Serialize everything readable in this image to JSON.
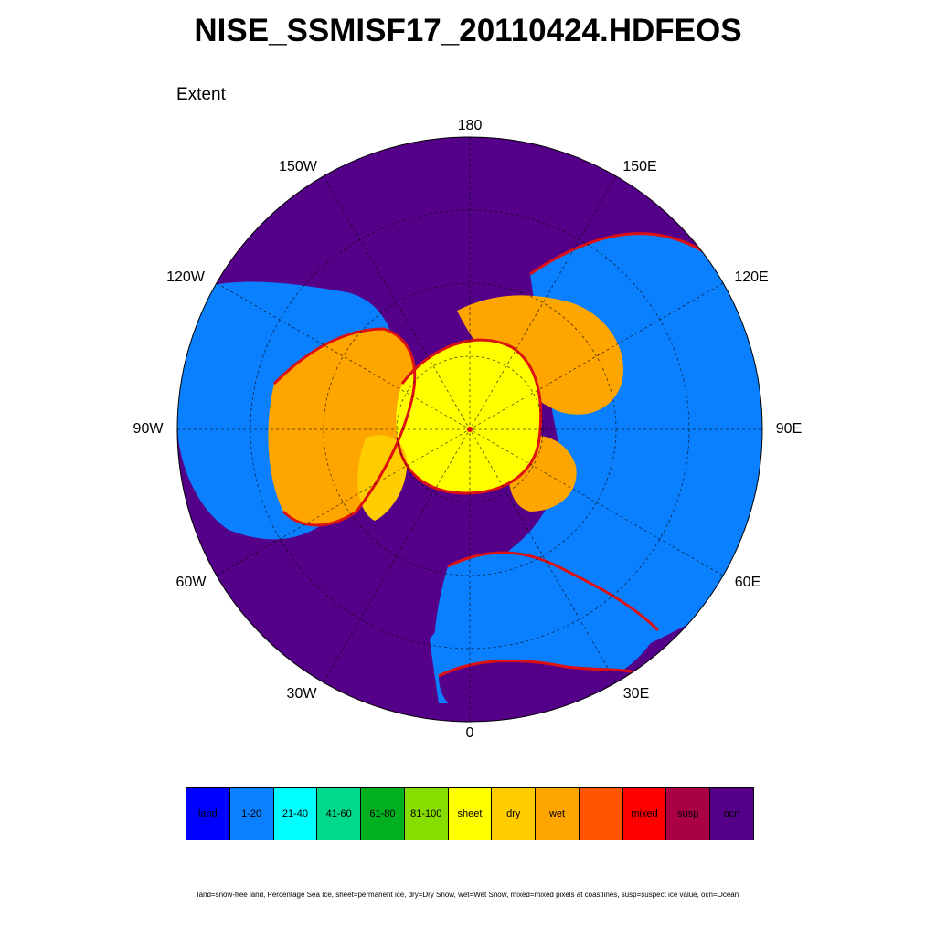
{
  "title": "NISE_SSMISF17_20110424.HDFEOS",
  "subtitle": "Extent",
  "lon_labels": {
    "top": "180",
    "bottom": "0",
    "left": "90W",
    "right": "90E",
    "upper_left_1": "150W",
    "upper_left_2": "120W",
    "upper_right_1": "150E",
    "upper_right_2": "120E",
    "lower_left_1": "60W",
    "lower_left_2": "30W",
    "lower_right_1": "60E",
    "lower_right_2": "30E"
  },
  "legend": {
    "items": [
      {
        "label": "land",
        "color": "#0000ff"
      },
      {
        "label": "1-20",
        "color": "#0a80ff"
      },
      {
        "label": "21-40",
        "color": "#00ffff"
      },
      {
        "label": "41-60",
        "color": "#00d98c"
      },
      {
        "label": "61-80",
        "color": "#00b020"
      },
      {
        "label": "81-100",
        "color": "#88dd00"
      },
      {
        "label": "sheet",
        "color": "#ffff00"
      },
      {
        "label": "dry",
        "color": "#ffcc00"
      },
      {
        "label": "wet",
        "color": "#ffa500"
      },
      {
        "label": "",
        "color": "#ff5500"
      },
      {
        "label": "mixed",
        "color": "#ff0000"
      },
      {
        "label": "susp",
        "color": "#aa0044"
      },
      {
        "label": "ocn",
        "color": "#550088"
      }
    ]
  },
  "footnote": "land=snow-free land, Percentage Sea Ice, sheet=permanent ice, dry=Dry Snow, wet=Wet Snow, mixed=mixed pixels at coastlines, susp=suspect ice value, ocn=Ocean",
  "colors": {
    "ocean": "#550088",
    "land": "#0a80ff",
    "sheet": "#ffff00",
    "dry": "#ffcc00",
    "wet": "#ffa500",
    "mixed": "#dd1111"
  }
}
